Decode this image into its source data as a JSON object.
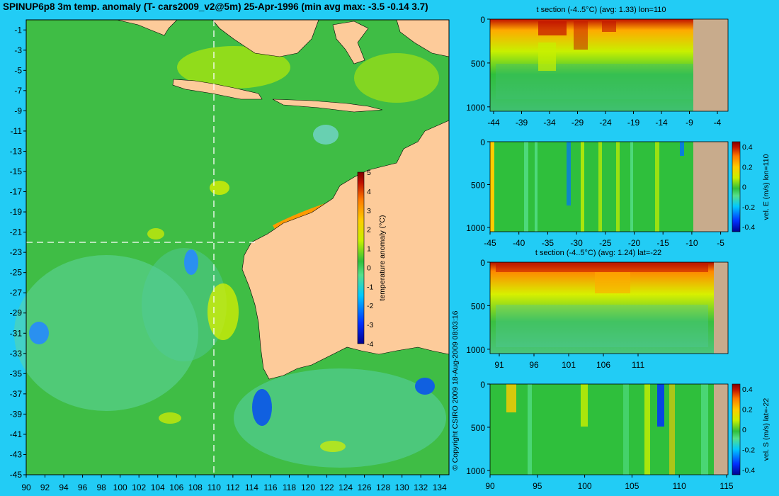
{
  "main": {
    "title": "SPINUP6p8 3m temp. anomaly (T- cars2009_v2@5m) 25-Apr-1996 (min avg max: -3.5 -0.14 3.7)",
    "copyright": "© Copyright CSIRO 2009    18-Aug-2009 08:03:16"
  },
  "colors": {
    "background": "#22ccf5",
    "land": "#fdcb9a",
    "section_land": "#c8ab8c",
    "ocean_base": "#3fbd45",
    "colormap": [
      "#00008f",
      "#0030ff",
      "#00c8ff",
      "#55e08b",
      "#2fbf3c",
      "#c8f000",
      "#ffcc00",
      "#ff7a00",
      "#c01000",
      "#7f0000"
    ]
  },
  "chart_data": [
    {
      "type": "heatmap",
      "title": "SPINUP6p8 3m temp. anomaly (T- cars2009_v2@5m) 25-Apr-1996 (min avg max: -3.5 -0.14 3.7)",
      "x_ticks": [
        "90",
        "92",
        "94",
        "96",
        "98",
        "100",
        "102",
        "104",
        "106",
        "108",
        "110",
        "112",
        "114",
        "116",
        "118",
        "120",
        "122",
        "124",
        "126",
        "128",
        "130",
        "132",
        "134"
      ],
      "y_ticks": [
        "-1",
        "-3",
        "-5",
        "-7",
        "-9",
        "-11",
        "-13",
        "-15",
        "-17",
        "-19",
        "-21",
        "-23",
        "-25",
        "-27",
        "-29",
        "-31",
        "-33",
        "-35",
        "-37",
        "-39",
        "-41",
        "-43",
        "-45"
      ],
      "xlim": [
        90,
        135
      ],
      "ylim": [
        -45,
        0
      ],
      "section_lines": {
        "lon": 110,
        "lat": -22
      },
      "colorbar": {
        "label": "temperature anomaly (°C)",
        "ticks": [
          "5",
          "4",
          "3",
          "2",
          "1",
          "0",
          "-1",
          "-2",
          "-3",
          "-4"
        ],
        "range": [
          -4,
          5
        ]
      },
      "stats": {
        "min": -3.5,
        "avg": -0.14,
        "max": 3.7
      }
    },
    {
      "type": "heatmap",
      "title": "t section (-4..5°C) (avg: 1.33) lon=110",
      "x_ticks": [
        "-44",
        "-39",
        "-34",
        "-29",
        "-24",
        "-19",
        "-14",
        "-9",
        "-4"
      ],
      "y_ticks": [
        "0",
        "500",
        "1000"
      ],
      "avg": 1.33
    },
    {
      "type": "heatmap",
      "title": "",
      "x_ticks": [
        "-45",
        "-40",
        "-35",
        "-30",
        "-25",
        "-20",
        "-15",
        "-10",
        "-5"
      ],
      "y_ticks": [
        "0",
        "500",
        "1000"
      ],
      "colorbar": {
        "label": "vel. E (m/s) lon=110",
        "ticks": [
          "0.4",
          "0.2",
          "0",
          "-0.2",
          "-0.4"
        ]
      }
    },
    {
      "type": "heatmap",
      "title": "t section (-4..5°C) (avg: 1.24) lat=-22",
      "x_ticks": [
        "91",
        "96",
        "101",
        "106",
        "111"
      ],
      "y_ticks": [
        "0",
        "500",
        "1000"
      ],
      "avg": 1.24
    },
    {
      "type": "heatmap",
      "title": "",
      "x_ticks": [
        "90",
        "95",
        "100",
        "105",
        "110",
        "115"
      ],
      "y_ticks": [
        "0",
        "500",
        "1000"
      ],
      "colorbar": {
        "label": "vel. S (m/s) lat=-22",
        "ticks": [
          "0.4",
          "0.2",
          "0",
          "-0.2",
          "-0.4"
        ]
      }
    }
  ]
}
